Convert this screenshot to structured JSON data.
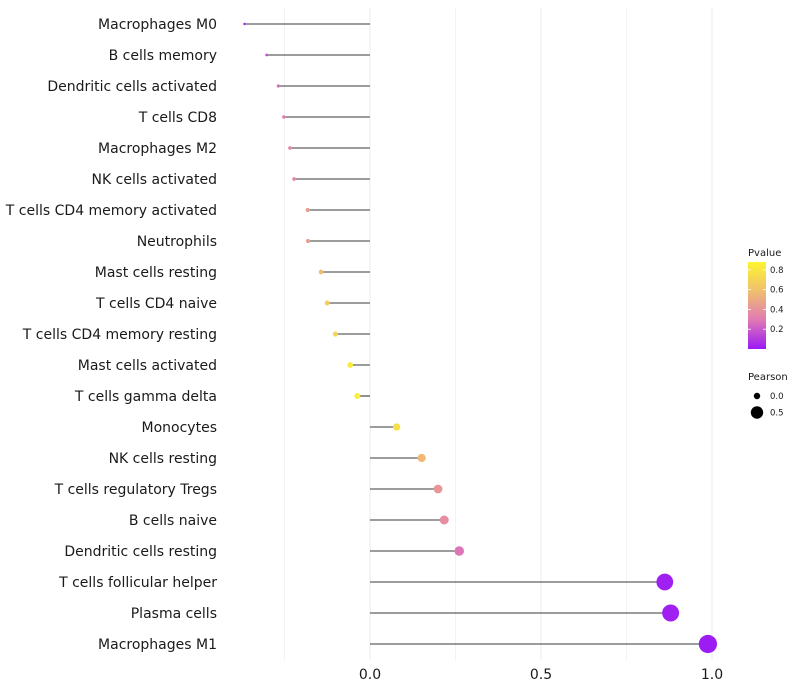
{
  "chart_data": {
    "type": "lollipop",
    "title": "",
    "xlabel": "",
    "ylabel": "",
    "xlim": [
      -0.37,
      1.0
    ],
    "x_ticks": [
      0.0,
      0.5,
      1.0
    ],
    "x_tick_labels": [
      "0.0",
      "0.5",
      "1.0"
    ],
    "grid": true,
    "legend_position": "right",
    "categories": [
      "Macrophages M0",
      "B cells memory",
      "Dendritic cells activated",
      "T cells CD8",
      "Macrophages M2",
      "NK cells activated",
      "T cells CD4 memory activated",
      "Neutrophils",
      "Mast cells resting",
      "T cells CD4 naive",
      "T cells CD4 memory resting",
      "Mast cells activated",
      "T cells gamma delta",
      "Monocytes",
      "NK cells resting",
      "T cells regulatory  Tregs ",
      "B cells naive",
      "Dendritic cells resting",
      "T cells follicular helper",
      "Plasma cells",
      "Macrophages M1"
    ],
    "pearson": [
      -0.367,
      -0.302,
      -0.268,
      -0.252,
      -0.234,
      -0.222,
      -0.182,
      -0.181,
      -0.143,
      -0.125,
      -0.101,
      -0.058,
      -0.037,
      0.078,
      0.151,
      0.199,
      0.217,
      0.261,
      0.862,
      0.879,
      0.988
    ],
    "pvalue": [
      0.02,
      0.15,
      0.26,
      0.3,
      0.33,
      0.36,
      0.45,
      0.45,
      0.58,
      0.66,
      0.7,
      0.82,
      0.84,
      0.76,
      0.56,
      0.42,
      0.38,
      0.28,
      0.02,
      0.02,
      0.01
    ],
    "color_legend": {
      "title": "Pvalue",
      "ticks": [
        0.2,
        0.4,
        0.6,
        0.8
      ],
      "tick_labels": [
        "0.2",
        "0.4",
        "0.6",
        "0.8"
      ],
      "range": [
        0.0,
        0.88
      ],
      "colors": [
        "#9b19f5",
        "#e07ab4",
        "#f0bf6e",
        "#fdf52f"
      ]
    },
    "size_legend": {
      "title": "Pearson",
      "values": [
        0.0,
        0.5
      ],
      "labels": [
        "0.0",
        "0.5"
      ]
    }
  }
}
